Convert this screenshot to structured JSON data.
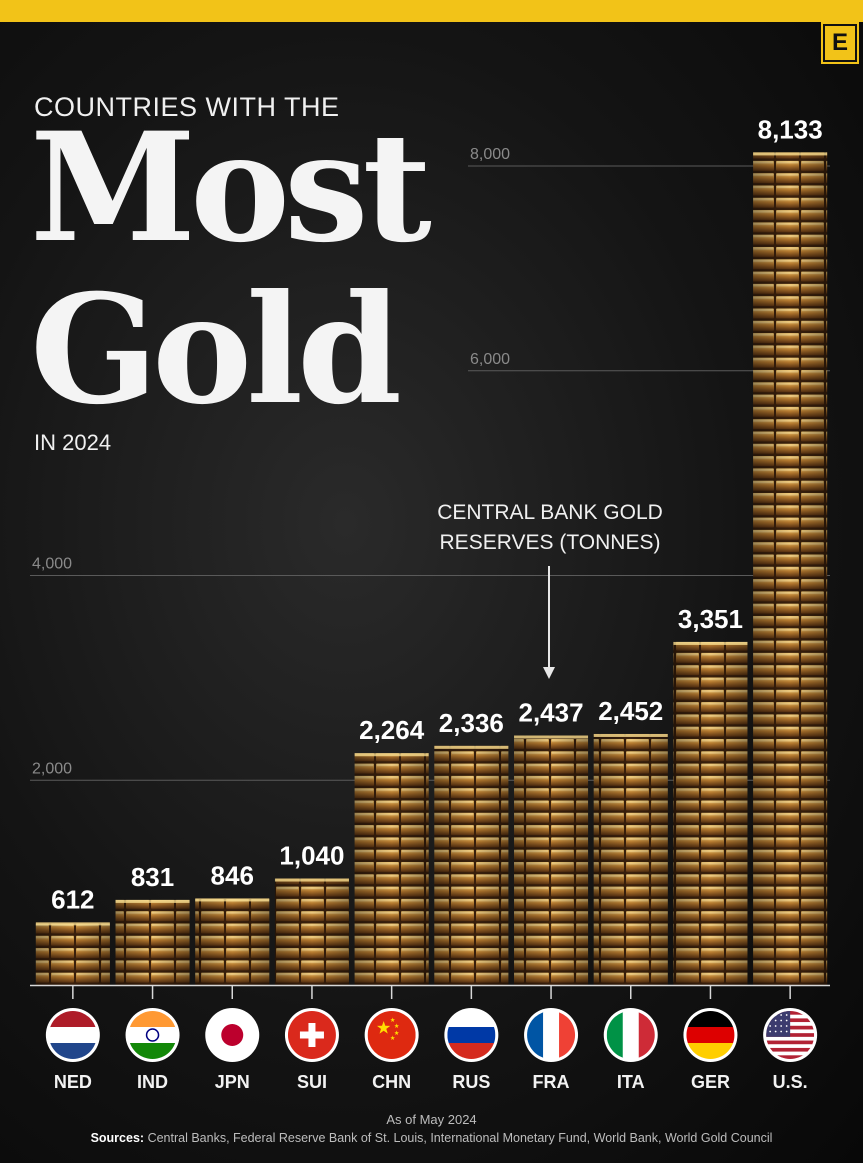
{
  "header": {
    "logo_letter": "E",
    "pre_title": "COUNTRIES WITH THE",
    "title_line1": "Most",
    "title_line2": "Gold",
    "post_title": "IN 2024"
  },
  "annotation": {
    "line1": "CENTRAL BANK GOLD",
    "line2": "RESERVES (TONNES)"
  },
  "footer": {
    "as_of": "As of May 2024",
    "sources_label": "Sources:",
    "sources_text": "Central Banks, Federal Reserve Bank of St. Louis, International Monetary Fund, World Bank, World Gold Council"
  },
  "colors": {
    "accent": "#f2c318",
    "gold_light": "#e9b45a",
    "gold_mid": "#a8692a",
    "gold_dark": "#4a2a10",
    "background": "#0c0c0c"
  },
  "chart_data": {
    "type": "bar",
    "title": "Countries with the Most Gold in 2024",
    "ylabel": "Central bank gold reserves (tonnes)",
    "ylim": [
      0,
      8300
    ],
    "yticks": [
      {
        "value": 2000,
        "label": "2,000"
      },
      {
        "value": 4000,
        "label": "4,000"
      },
      {
        "value": 6000,
        "label": "6,000"
      },
      {
        "value": 8000,
        "label": "8,000"
      }
    ],
    "grid": true,
    "categories": [
      "NED",
      "IND",
      "JPN",
      "SUI",
      "CHN",
      "RUS",
      "FRA",
      "ITA",
      "GER",
      "U.S."
    ],
    "values": [
      612,
      831,
      846,
      1040,
      2264,
      2336,
      2437,
      2452,
      3351,
      8133
    ],
    "value_labels": [
      "612",
      "831",
      "846",
      "1,040",
      "2,264",
      "2,336",
      "2,437",
      "2,452",
      "3,351",
      "8,133"
    ],
    "flags": [
      "netherlands-flag",
      "india-flag",
      "japan-flag",
      "switzerland-flag",
      "china-flag",
      "russia-flag",
      "france-flag",
      "italy-flag",
      "germany-flag",
      "usa-flag"
    ],
    "annotation_target": "FRA"
  }
}
